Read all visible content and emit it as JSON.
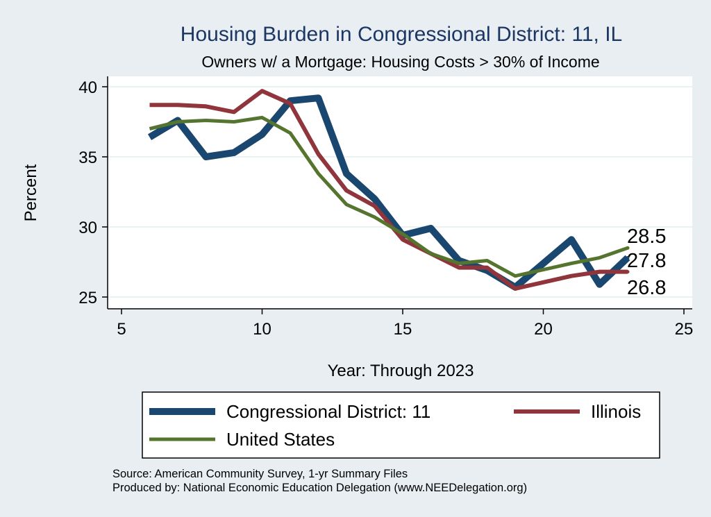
{
  "chart_data": {
    "type": "line",
    "title": "Housing Burden in Congressional District:  11, IL",
    "subtitle": "Owners w/ a Mortgage: Housing Costs > 30% of Income",
    "xlabel": "Year: Through 2023",
    "ylabel": "Percent",
    "xlim": [
      5,
      25
    ],
    "ylim": [
      25,
      40
    ],
    "xticks": [
      5,
      10,
      15,
      20,
      25
    ],
    "yticks": [
      25,
      30,
      35,
      40
    ],
    "grid": true,
    "legend_position": "bottom",
    "series": [
      {
        "name": "Congressional District:  11",
        "color": "#1a476f",
        "x": [
          6,
          7,
          8,
          9,
          10,
          11,
          12,
          13,
          14,
          15,
          16,
          17,
          18,
          19,
          21,
          22,
          23
        ],
        "values": [
          36.4,
          37.6,
          35.0,
          35.3,
          36.6,
          39.0,
          39.2,
          33.8,
          32.0,
          29.4,
          29.9,
          27.6,
          26.9,
          25.7,
          29.1,
          25.9,
          27.8
        ],
        "end_label": "27.8"
      },
      {
        "name": "Illinois",
        "color": "#90353b",
        "x": [
          6,
          7,
          8,
          9,
          10,
          11,
          12,
          13,
          14,
          15,
          16,
          17,
          18,
          19,
          21,
          22,
          23
        ],
        "values": [
          38.7,
          38.7,
          38.6,
          38.2,
          39.7,
          38.8,
          35.2,
          32.6,
          31.5,
          29.1,
          28.1,
          27.1,
          27.1,
          25.6,
          26.5,
          26.8,
          26.8
        ],
        "end_label": "26.8"
      },
      {
        "name": "United States",
        "color": "#55752f",
        "x": [
          6,
          7,
          8,
          9,
          10,
          11,
          12,
          13,
          14,
          15,
          16,
          17,
          18,
          19,
          21,
          22,
          23
        ],
        "values": [
          37.0,
          37.5,
          37.6,
          37.5,
          37.8,
          36.7,
          33.8,
          31.6,
          30.7,
          29.5,
          28.1,
          27.4,
          27.6,
          26.5,
          27.4,
          27.8,
          28.5
        ],
        "end_label": "28.5"
      }
    ]
  },
  "source_line": "Source: American Community Survey, 1-yr Summary Files",
  "produced_line": "Produced by: National Economic Education Delegation (www.NEEDelegation.org)"
}
